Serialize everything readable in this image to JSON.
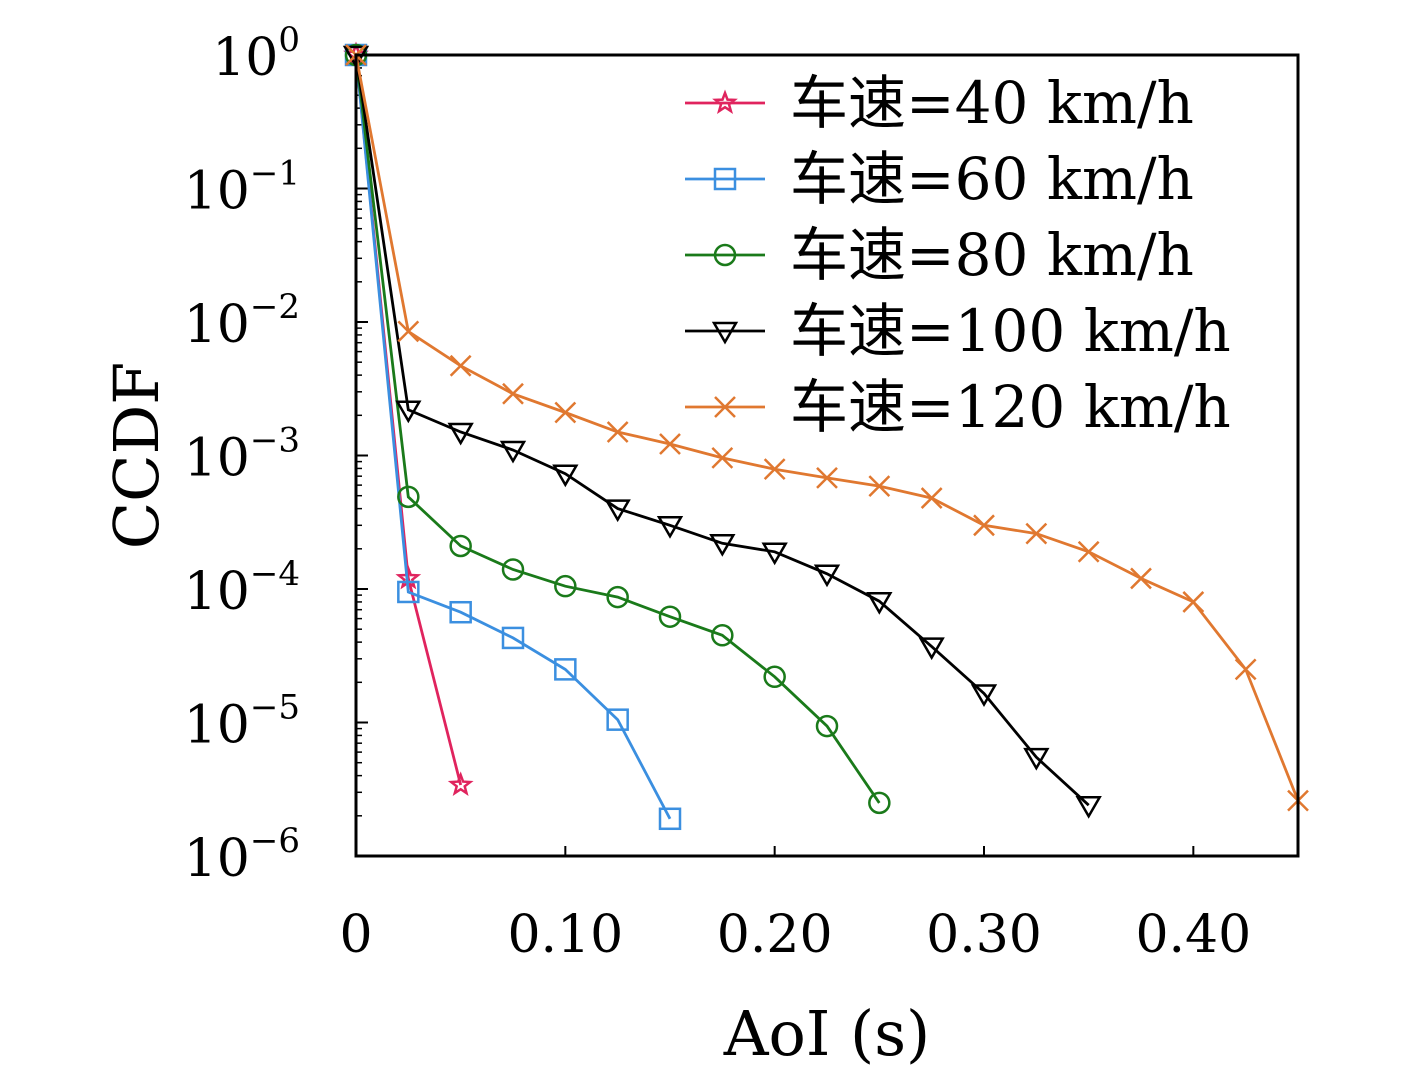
{
  "chart_data": {
    "type": "line",
    "xlabel": "AoI (s)",
    "ylabel": "CCDF",
    "xlim": [
      0,
      0.45
    ],
    "ylim": [
      1e-06,
      1
    ],
    "yscale": "log",
    "grid": false,
    "legend_position": "top-right",
    "x_ticks": [
      {
        "value": 0,
        "label": "0"
      },
      {
        "value": 0.1,
        "label": "0.10"
      },
      {
        "value": 0.2,
        "label": "0.20"
      },
      {
        "value": 0.3,
        "label": "0.30"
      },
      {
        "value": 0.4,
        "label": "0.40"
      }
    ],
    "y_ticks": [
      {
        "value": 1,
        "base": "10",
        "exp": "0"
      },
      {
        "value": 0.1,
        "base": "10",
        "exp": "−1"
      },
      {
        "value": 0.01,
        "base": "10",
        "exp": "−2"
      },
      {
        "value": 0.001,
        "base": "10",
        "exp": "−3"
      },
      {
        "value": 0.0001,
        "base": "10",
        "exp": "−4"
      },
      {
        "value": 1e-05,
        "base": "10",
        "exp": "−5"
      },
      {
        "value": 1e-06,
        "base": "10",
        "exp": "−6"
      }
    ],
    "series": [
      {
        "name": "车速=40 km/h",
        "color": "#e0245e",
        "marker": "star",
        "x": [
          0,
          0.025,
          0.05
        ],
        "y": [
          1,
          0.00012,
          3.4e-06
        ]
      },
      {
        "name": "车速=60 km/h",
        "color": "#3b8fe0",
        "marker": "square",
        "x": [
          0,
          0.025,
          0.05,
          0.075,
          0.1,
          0.125,
          0.15
        ],
        "y": [
          1,
          9.5e-05,
          6.7e-05,
          4.3e-05,
          2.5e-05,
          1.05e-05,
          1.9e-06
        ]
      },
      {
        "name": "车速=80 km/h",
        "color": "#1a7a1a",
        "marker": "circle",
        "x": [
          0,
          0.025,
          0.05,
          0.075,
          0.1,
          0.125,
          0.15,
          0.175,
          0.2,
          0.225,
          0.25
        ],
        "y": [
          1,
          0.00049,
          0.00021,
          0.00014,
          0.000105,
          8.7e-05,
          6.2e-05,
          4.5e-05,
          2.2e-05,
          9.4e-06,
          2.5e-06
        ]
      },
      {
        "name": "车速=100 km/h",
        "color": "#000000",
        "marker": "triangle-down",
        "x": [
          0,
          0.025,
          0.05,
          0.075,
          0.1,
          0.125,
          0.15,
          0.175,
          0.2,
          0.225,
          0.25,
          0.275,
          0.3,
          0.325,
          0.35
        ],
        "y": [
          1,
          0.0022,
          0.0015,
          0.0011,
          0.00073,
          0.0004,
          0.0003,
          0.00022,
          0.00019,
          0.00013,
          8.1e-05,
          3.7e-05,
          1.65e-05,
          5.5e-06,
          2.4e-06
        ]
      },
      {
        "name": "车速=120 km/h",
        "color": "#e07830",
        "marker": "x",
        "x": [
          0,
          0.025,
          0.05,
          0.075,
          0.1,
          0.125,
          0.15,
          0.175,
          0.2,
          0.225,
          0.25,
          0.275,
          0.3,
          0.325,
          0.35,
          0.375,
          0.4,
          0.425,
          0.45
        ],
        "y": [
          1,
          0.0085,
          0.0047,
          0.0029,
          0.0021,
          0.0015,
          0.00122,
          0.00096,
          0.00079,
          0.00068,
          0.00059,
          0.00048,
          0.0003,
          0.00026,
          0.00019,
          0.00012,
          8e-05,
          2.5e-05,
          2.6e-06
        ]
      }
    ]
  }
}
